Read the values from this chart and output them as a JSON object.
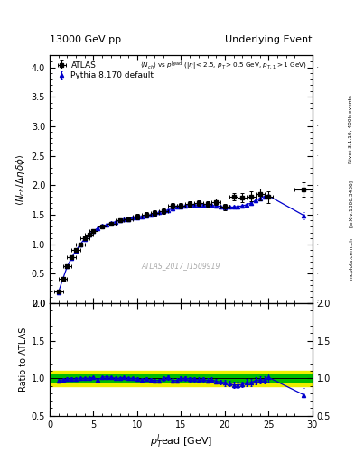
{
  "title_left": "13000 GeV pp",
  "title_right": "Underlying Event",
  "annotation": "ATLAS_2017_I1509919",
  "ylabel_main": "<N_{ch}/\\u0394\\u03b7 delta>",
  "ylabel_ratio": "Ratio to ATLAS",
  "xlabel": "p_{T}^{l}ead [GeV]",
  "right_label": "Rivet 3.1.10, 400k events",
  "arxiv_label": "[arXiv:1306.3436]",
  "mcplots_label": "mcplots.cern.ch",
  "legend_atlas": "ATLAS",
  "legend_pythia": "Pythia 8.170 default",
  "ylim_main": [
    0,
    4.2
  ],
  "ylim_ratio": [
    0.5,
    2.0
  ],
  "xlim": [
    0,
    30
  ],
  "atlas_x": [
    1.0,
    1.5,
    2.0,
    2.5,
    3.0,
    3.5,
    4.0,
    4.5,
    5.0,
    6.0,
    7.0,
    8.0,
    9.0,
    10.0,
    11.0,
    12.0,
    13.0,
    14.0,
    15.0,
    16.0,
    17.0,
    18.0,
    19.0,
    20.0,
    21.0,
    22.0,
    23.0,
    24.0,
    25.0,
    29.0
  ],
  "atlas_y": [
    0.2,
    0.42,
    0.63,
    0.78,
    0.9,
    1.0,
    1.1,
    1.17,
    1.22,
    1.3,
    1.35,
    1.4,
    1.43,
    1.47,
    1.5,
    1.53,
    1.56,
    1.65,
    1.65,
    1.68,
    1.7,
    1.68,
    1.72,
    1.63,
    1.8,
    1.79,
    1.81,
    1.85,
    1.8,
    1.93
  ],
  "atlas_yerr": [
    0.03,
    0.03,
    0.03,
    0.03,
    0.03,
    0.03,
    0.03,
    0.03,
    0.03,
    0.03,
    0.03,
    0.03,
    0.03,
    0.04,
    0.04,
    0.04,
    0.05,
    0.05,
    0.05,
    0.05,
    0.05,
    0.05,
    0.06,
    0.06,
    0.06,
    0.08,
    0.08,
    0.1,
    0.1,
    0.12
  ],
  "atlas_xerr": [
    0.5,
    0.5,
    0.5,
    0.5,
    0.5,
    0.5,
    0.5,
    0.5,
    0.5,
    0.5,
    0.5,
    0.5,
    0.5,
    0.5,
    0.5,
    0.5,
    0.5,
    0.5,
    0.5,
    0.5,
    0.5,
    0.5,
    0.5,
    0.5,
    0.5,
    0.5,
    0.5,
    0.5,
    0.5,
    1.0
  ],
  "pythia_x": [
    1.0,
    1.5,
    2.0,
    2.5,
    3.0,
    3.5,
    4.0,
    4.5,
    5.0,
    5.5,
    6.0,
    6.5,
    7.0,
    7.5,
    8.0,
    8.5,
    9.0,
    9.5,
    10.0,
    10.5,
    11.0,
    11.5,
    12.0,
    12.5,
    13.0,
    13.5,
    14.0,
    14.5,
    15.0,
    15.5,
    16.0,
    16.5,
    17.0,
    17.5,
    18.0,
    18.5,
    19.0,
    19.5,
    20.0,
    20.5,
    21.0,
    21.5,
    22.0,
    22.5,
    23.0,
    23.5,
    24.0,
    24.5,
    25.0,
    29.0
  ],
  "pythia_y": [
    0.19,
    0.41,
    0.62,
    0.77,
    0.89,
    1.0,
    1.09,
    1.17,
    1.23,
    1.27,
    1.31,
    1.33,
    1.36,
    1.38,
    1.4,
    1.42,
    1.43,
    1.45,
    1.46,
    1.47,
    1.49,
    1.5,
    1.51,
    1.54,
    1.56,
    1.58,
    1.6,
    1.63,
    1.64,
    1.65,
    1.66,
    1.66,
    1.67,
    1.67,
    1.67,
    1.66,
    1.65,
    1.64,
    1.62,
    1.63,
    1.63,
    1.64,
    1.65,
    1.67,
    1.7,
    1.74,
    1.78,
    1.81,
    1.82,
    1.49
  ],
  "pythia_yerr": [
    0.005,
    0.005,
    0.005,
    0.005,
    0.005,
    0.005,
    0.005,
    0.005,
    0.005,
    0.005,
    0.005,
    0.005,
    0.005,
    0.005,
    0.005,
    0.005,
    0.005,
    0.005,
    0.005,
    0.005,
    0.005,
    0.005,
    0.005,
    0.005,
    0.005,
    0.005,
    0.005,
    0.005,
    0.005,
    0.005,
    0.005,
    0.005,
    0.005,
    0.005,
    0.005,
    0.005,
    0.005,
    0.005,
    0.005,
    0.005,
    0.005,
    0.005,
    0.005,
    0.005,
    0.005,
    0.005,
    0.005,
    0.005,
    0.005,
    0.06
  ],
  "ratio_y": [
    0.97,
    0.98,
    0.99,
    0.99,
    0.99,
    1.0,
    1.0,
    1.0,
    1.01,
    0.98,
    1.01,
    1.02,
    1.01,
    1.0,
    1.0,
    1.01,
    1.0,
    1.0,
    0.99,
    0.98,
    0.99,
    0.98,
    0.97,
    0.97,
    1.0,
    1.01,
    0.97,
    0.97,
    1.0,
    1.0,
    0.99,
    0.99,
    0.98,
    0.99,
    0.97,
    0.98,
    0.96,
    0.95,
    0.94,
    0.93,
    0.91,
    0.91,
    0.92,
    0.94,
    0.94,
    0.97,
    0.98,
    0.98,
    1.01,
    0.78
  ],
  "ratio_yerr": [
    0.02,
    0.02,
    0.02,
    0.02,
    0.02,
    0.02,
    0.02,
    0.02,
    0.02,
    0.02,
    0.02,
    0.02,
    0.02,
    0.02,
    0.02,
    0.02,
    0.02,
    0.02,
    0.02,
    0.02,
    0.02,
    0.02,
    0.02,
    0.02,
    0.03,
    0.03,
    0.03,
    0.03,
    0.03,
    0.03,
    0.03,
    0.03,
    0.03,
    0.03,
    0.03,
    0.03,
    0.03,
    0.03,
    0.04,
    0.04,
    0.04,
    0.04,
    0.04,
    0.05,
    0.05,
    0.05,
    0.05,
    0.05,
    0.05,
    0.09
  ],
  "ratio_band_green": 0.05,
  "ratio_band_yellow": 0.1,
  "color_atlas": "#000000",
  "color_pythia": "#0000cc",
  "color_green": "#00bb00",
  "color_yellow": "#eeee00",
  "marker_atlas": "s",
  "marker_pythia": "^",
  "bg_color": "#ffffff",
  "yticks_main": [
    0,
    0.5,
    1.0,
    1.5,
    2.0,
    2.5,
    3.0,
    3.5,
    4.0
  ],
  "yticks_ratio": [
    0.5,
    1.0,
    1.5,
    2.0
  ],
  "formula_line1": "<N_{ch}> vs p_{T}^{lead} (|\\u03b7| < 2.5, p_{T} > 0.5 GeV, p_{T,1} > 1 GeV)"
}
